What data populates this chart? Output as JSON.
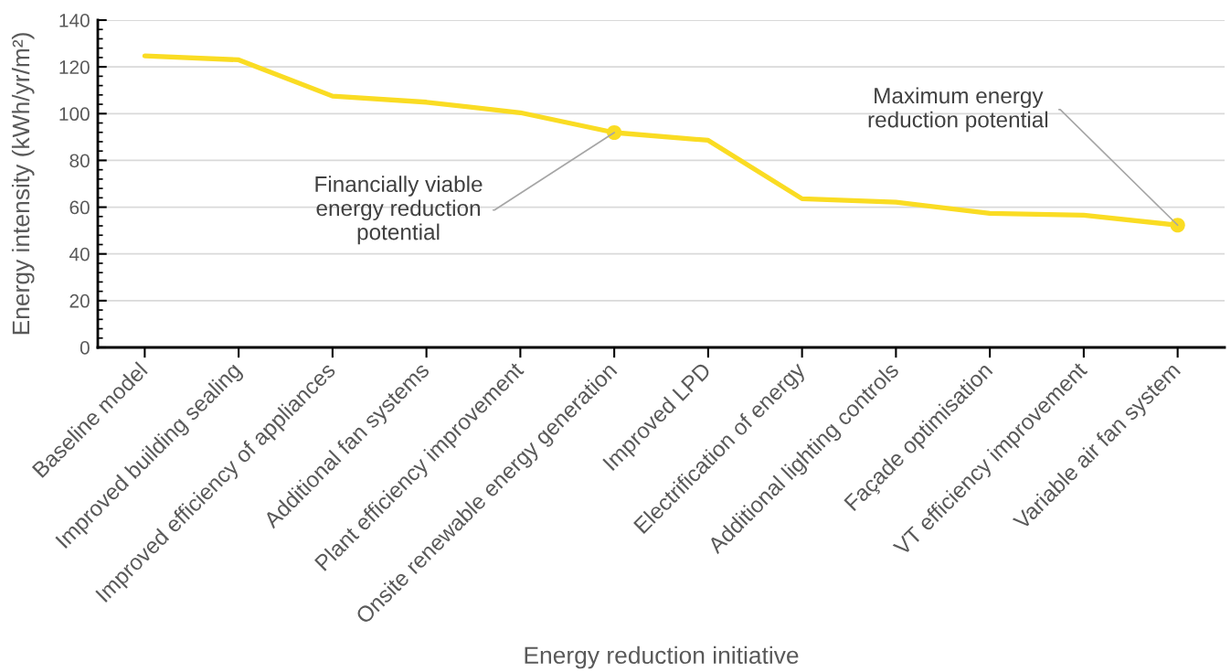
{
  "chart_data": {
    "type": "line",
    "xlabel": "Energy reduction initiative",
    "ylabel": "Energy intensity (kWh/yr/m²)",
    "categories": [
      "Baseline model",
      "Improved building sealing",
      "Improved efficiency of appliances",
      "Additional fan systems",
      "Plant efficiency improvement",
      "Onsite renewable energy generation",
      "Improved LPD",
      "Electrification of energy",
      "Additional lighting controls",
      "Façade optimisation",
      "VT efficiency improvement",
      "Variable air fan system"
    ],
    "series": [
      {
        "color": "#fadc23",
        "values": [
          124.7,
          123.0,
          107.5,
          104.9,
          100.4,
          91.9,
          88.6,
          63.6,
          62.1,
          57.3,
          56.6,
          52.3
        ]
      },
      {
        "type": "scatter",
        "color": "#fadc23",
        "marker": "circle",
        "x": [
          "Onsite renewable energy generation",
          "Variable air fan system"
        ],
        "values": [
          91.9,
          52.3
        ]
      }
    ],
    "ylim": [
      0,
      140
    ],
    "yticks": [
      0,
      20,
      40,
      60,
      80,
      100,
      120,
      140
    ],
    "grid": "y",
    "annotations": [
      {
        "text": "Financially viable\nenergy reduction\npotential",
        "x": "Onsite renewable energy generation",
        "y": 91.9
      },
      {
        "text": "Maximum energy\nreduction potential",
        "x": "Variable air fan system",
        "y": 52.3
      }
    ]
  }
}
